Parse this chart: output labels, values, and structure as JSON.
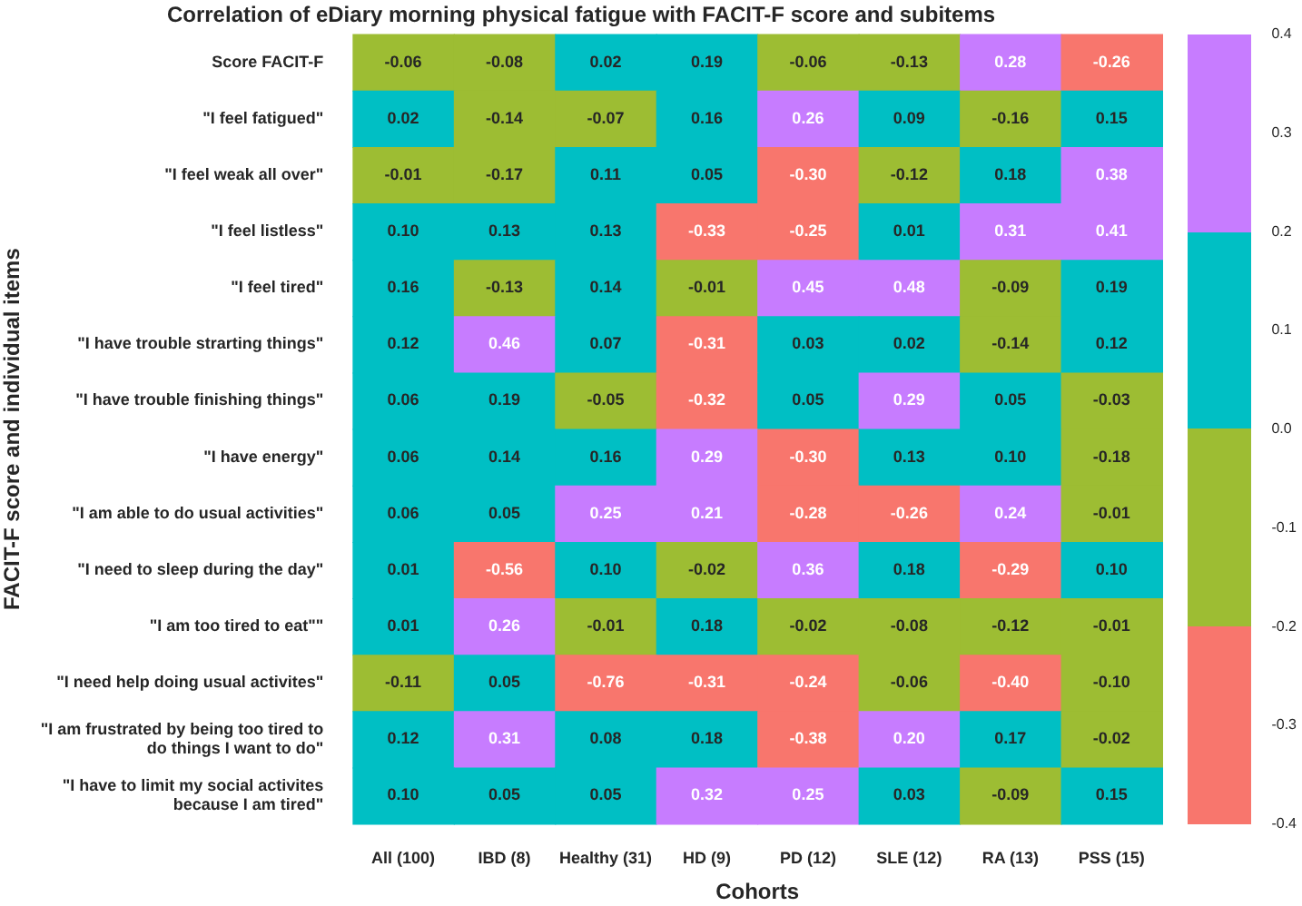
{
  "chart_data": {
    "type": "heatmap",
    "title": "Correlation of eDiary morning physical fatigue with FACIT-F score and subitems",
    "xlabel": "Cohorts",
    "ylabel": "FACIT-F score and individual items",
    "categories": [
      "All (100)",
      "IBD (8)",
      "Healthy (31)",
      "HD (9)",
      "PD (12)",
      "SLE (12)",
      "RA (13)",
      "PSS (15)"
    ],
    "y_categories": [
      "Score FACIT-F",
      "\"I feel fatigued\"",
      "\"I feel weak all over\"",
      "\"I feel listless\"",
      "\"I feel tired\"",
      "\"I have trouble strarting things\"",
      "\"I have trouble finishing things\"",
      "\"I have energy\"",
      "\"I am able to do usual activities\"",
      "\"I need to sleep during the day\"",
      "\"I am too tired to eat\"\"",
      "\"I need help doing usual activites\"",
      "\"I am frustrated by being too tired to do things I want to do\"",
      "\"I have to limit my social activites because I am tired\""
    ],
    "cells": [
      [
        -0.06,
        -0.08,
        0.02,
        0.19,
        -0.06,
        -0.13,
        0.28,
        -0.26
      ],
      [
        0.02,
        -0.14,
        -0.07,
        0.16,
        0.26,
        0.09,
        -0.16,
        0.15
      ],
      [
        -0.01,
        -0.17,
        0.11,
        0.05,
        -0.3,
        -0.12,
        0.18,
        0.38
      ],
      [
        0.1,
        0.13,
        0.13,
        -0.33,
        -0.25,
        0.01,
        0.31,
        0.41
      ],
      [
        0.16,
        -0.13,
        0.14,
        -0.01,
        0.45,
        0.48,
        -0.09,
        0.19
      ],
      [
        0.12,
        0.46,
        0.07,
        -0.31,
        0.03,
        0.02,
        -0.14,
        0.12
      ],
      [
        0.06,
        0.19,
        -0.05,
        -0.32,
        0.05,
        0.29,
        0.05,
        -0.03
      ],
      [
        0.06,
        0.14,
        0.16,
        0.29,
        -0.3,
        0.13,
        0.1,
        -0.18
      ],
      [
        0.06,
        0.05,
        0.25,
        0.21,
        -0.28,
        -0.26,
        0.24,
        -0.01
      ],
      [
        0.01,
        -0.56,
        0.1,
        -0.02,
        0.36,
        0.18,
        -0.29,
        0.1
      ],
      [
        0.01,
        0.26,
        -0.01,
        0.18,
        -0.02,
        -0.08,
        -0.12,
        -0.01
      ],
      [
        -0.11,
        0.05,
        -0.76,
        -0.31,
        -0.24,
        -0.06,
        -0.4,
        -0.1
      ],
      [
        0.12,
        0.31,
        0.08,
        0.18,
        -0.38,
        0.2,
        0.17,
        -0.02
      ],
      [
        0.1,
        0.05,
        0.05,
        0.32,
        0.25,
        0.03,
        -0.09,
        0.15
      ]
    ],
    "colors": [
      "#f8766d",
      "#9dbd33",
      "#00bfc4",
      "#c77cff"
    ],
    "clim": [
      -0.4,
      0.4
    ],
    "cticks": [
      -0.4,
      -0.3,
      -0.2,
      -0.1,
      {
        "value": 0,
        "label": "0.0"
      },
      0.1,
      0.2,
      0.3,
      0.4
    ],
    "data_labels": true,
    "cell_labels": [
      [
        "-0.06",
        "-0.08",
        "0.02",
        "0.19",
        "-0.06",
        "-0.13",
        "0.28",
        "-0.26"
      ],
      [
        "0.02",
        "-0.14",
        "-0.07",
        "0.16",
        "0.26",
        "0.09",
        "-0.16",
        "0.15"
      ],
      [
        "-0.01",
        "-0.17",
        "0.11",
        "0.05",
        "-0.30",
        "-0.12",
        "0.18",
        "0.38"
      ],
      [
        "0.10",
        "0.13",
        "0.13",
        "-0.33",
        "-0.25",
        "0.01",
        "0.31",
        "0.41"
      ],
      [
        "0.16",
        "-0.13",
        "0.14",
        "-0.01",
        "0.45",
        "0.48",
        "-0.09",
        "0.19"
      ],
      [
        "0.12",
        "0.46",
        "0.07",
        "-0.31",
        "0.03",
        "0.02",
        "-0.14",
        "0.12"
      ],
      [
        "0.06",
        "0.19",
        "-0.05",
        "-0.32",
        "0.05",
        "0.29",
        "0.05",
        "-0.03"
      ],
      [
        "0.06",
        "0.14",
        "0.16",
        "0.29",
        "-0.30",
        "0.13",
        "0.10",
        "-0.18"
      ],
      [
        "0.06",
        "0.05",
        "0.25",
        "0.21",
        "-0.28",
        "-0.26",
        "0.24",
        "-0.01"
      ],
      [
        "0.01",
        "-0.56",
        "0.10",
        "-0.02",
        "0.36",
        "0.18",
        "-0.29",
        "0.10"
      ],
      [
        "0.01",
        "0.26",
        "-0.01",
        "0.18",
        "-0.02",
        "-0.08",
        "-0.12",
        "-0.01"
      ],
      [
        "-0.11",
        "0.05",
        "-0.76",
        "-0.31",
        "-0.24",
        "-0.06",
        "-0.40",
        "-0.10"
      ],
      [
        "0.12",
        "0.31",
        "0.08",
        "0.18",
        "-0.38",
        "0.20",
        "0.17",
        "-0.02"
      ],
      [
        "0.10",
        "0.05",
        "0.05",
        "0.32",
        "0.25",
        "0.03",
        "-0.09",
        "0.15"
      ]
    ]
  }
}
